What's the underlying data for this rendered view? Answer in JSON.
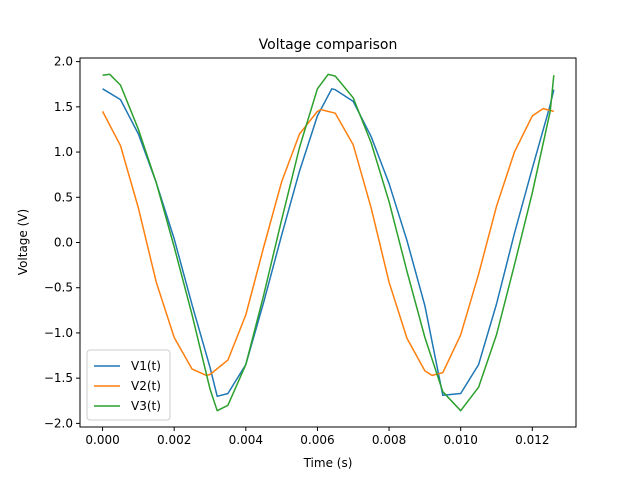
{
  "chart_data": {
    "type": "line",
    "title": "Voltage comparison",
    "xlabel": "Time (s)",
    "ylabel": "Voltage (V)",
    "xlim": [
      -0.00063,
      0.01322
    ],
    "ylim": [
      -2.04,
      2.04
    ],
    "grid": false,
    "legend_position": "lower-left",
    "xticks": [
      0.0,
      0.002,
      0.004,
      0.006,
      0.008,
      0.01,
      0.012
    ],
    "xtick_labels": [
      "0.000",
      "0.002",
      "0.004",
      "0.006",
      "0.008",
      "0.010",
      "0.012"
    ],
    "yticks": [
      -2.0,
      -1.5,
      -1.0,
      -0.5,
      0.0,
      0.5,
      1.0,
      1.5,
      2.0
    ],
    "ytick_labels": [
      "−2.0",
      "−1.5",
      "−1.0",
      "−0.5",
      "0.0",
      "0.5",
      "1.0",
      "1.5",
      "2.0"
    ],
    "series": [
      {
        "name": "V1(t)",
        "color": "#1f77b4",
        "x": [
          0.0,
          0.0005,
          0.001,
          0.0015,
          0.002,
          0.0025,
          0.003,
          0.0032,
          0.0035,
          0.004,
          0.0045,
          0.005,
          0.0055,
          0.006,
          0.0064,
          0.0065,
          0.007,
          0.0075,
          0.008,
          0.0085,
          0.009,
          0.0095,
          0.01,
          0.0105,
          0.011,
          0.0115,
          0.012,
          0.0125,
          0.0126
        ],
        "y": [
          1.7,
          1.58,
          1.2,
          0.66,
          0.04,
          -0.69,
          -1.38,
          -1.7,
          -1.67,
          -1.35,
          -0.66,
          0.08,
          0.79,
          1.4,
          1.7,
          1.69,
          1.56,
          1.17,
          0.65,
          0.02,
          -0.7,
          -1.69,
          -1.67,
          -1.35,
          -0.68,
          0.1,
          0.82,
          1.52,
          1.69
        ]
      },
      {
        "name": "V2(t)",
        "color": "#ff7f0e",
        "x": [
          0.0,
          0.0005,
          0.001,
          0.0015,
          0.002,
          0.0025,
          0.0029,
          0.003,
          0.0035,
          0.004,
          0.0045,
          0.005,
          0.0055,
          0.006,
          0.0061,
          0.0065,
          0.007,
          0.0075,
          0.008,
          0.0085,
          0.009,
          0.0092,
          0.0095,
          0.01,
          0.0105,
          0.011,
          0.0115,
          0.012,
          0.0123,
          0.0126
        ],
        "y": [
          1.45,
          1.07,
          0.38,
          -0.44,
          -1.05,
          -1.4,
          -1.47,
          -1.46,
          -1.3,
          -0.8,
          -0.05,
          0.67,
          1.2,
          1.45,
          1.47,
          1.43,
          1.08,
          0.38,
          -0.44,
          -1.06,
          -1.42,
          -1.47,
          -1.44,
          -1.02,
          -0.35,
          0.4,
          1.0,
          1.4,
          1.48,
          1.45
        ]
      },
      {
        "name": "V3(t)",
        "color": "#2ca02c",
        "x": [
          0.0,
          0.0002,
          0.0005,
          0.001,
          0.0015,
          0.002,
          0.0025,
          0.003,
          0.0032,
          0.0035,
          0.004,
          0.0045,
          0.005,
          0.0055,
          0.006,
          0.0063,
          0.0065,
          0.007,
          0.0075,
          0.008,
          0.0085,
          0.009,
          0.0095,
          0.01,
          0.0105,
          0.011,
          0.0115,
          0.012,
          0.0125,
          0.0126
        ],
        "y": [
          1.85,
          1.86,
          1.74,
          1.25,
          0.66,
          -0.05,
          -0.8,
          -1.62,
          -1.86,
          -1.8,
          -1.35,
          -0.58,
          0.25,
          1.05,
          1.7,
          1.86,
          1.84,
          1.6,
          1.1,
          0.45,
          -0.32,
          -1.05,
          -1.65,
          -1.86,
          -1.6,
          -1.02,
          -0.25,
          0.55,
          1.45,
          1.85
        ]
      }
    ]
  }
}
